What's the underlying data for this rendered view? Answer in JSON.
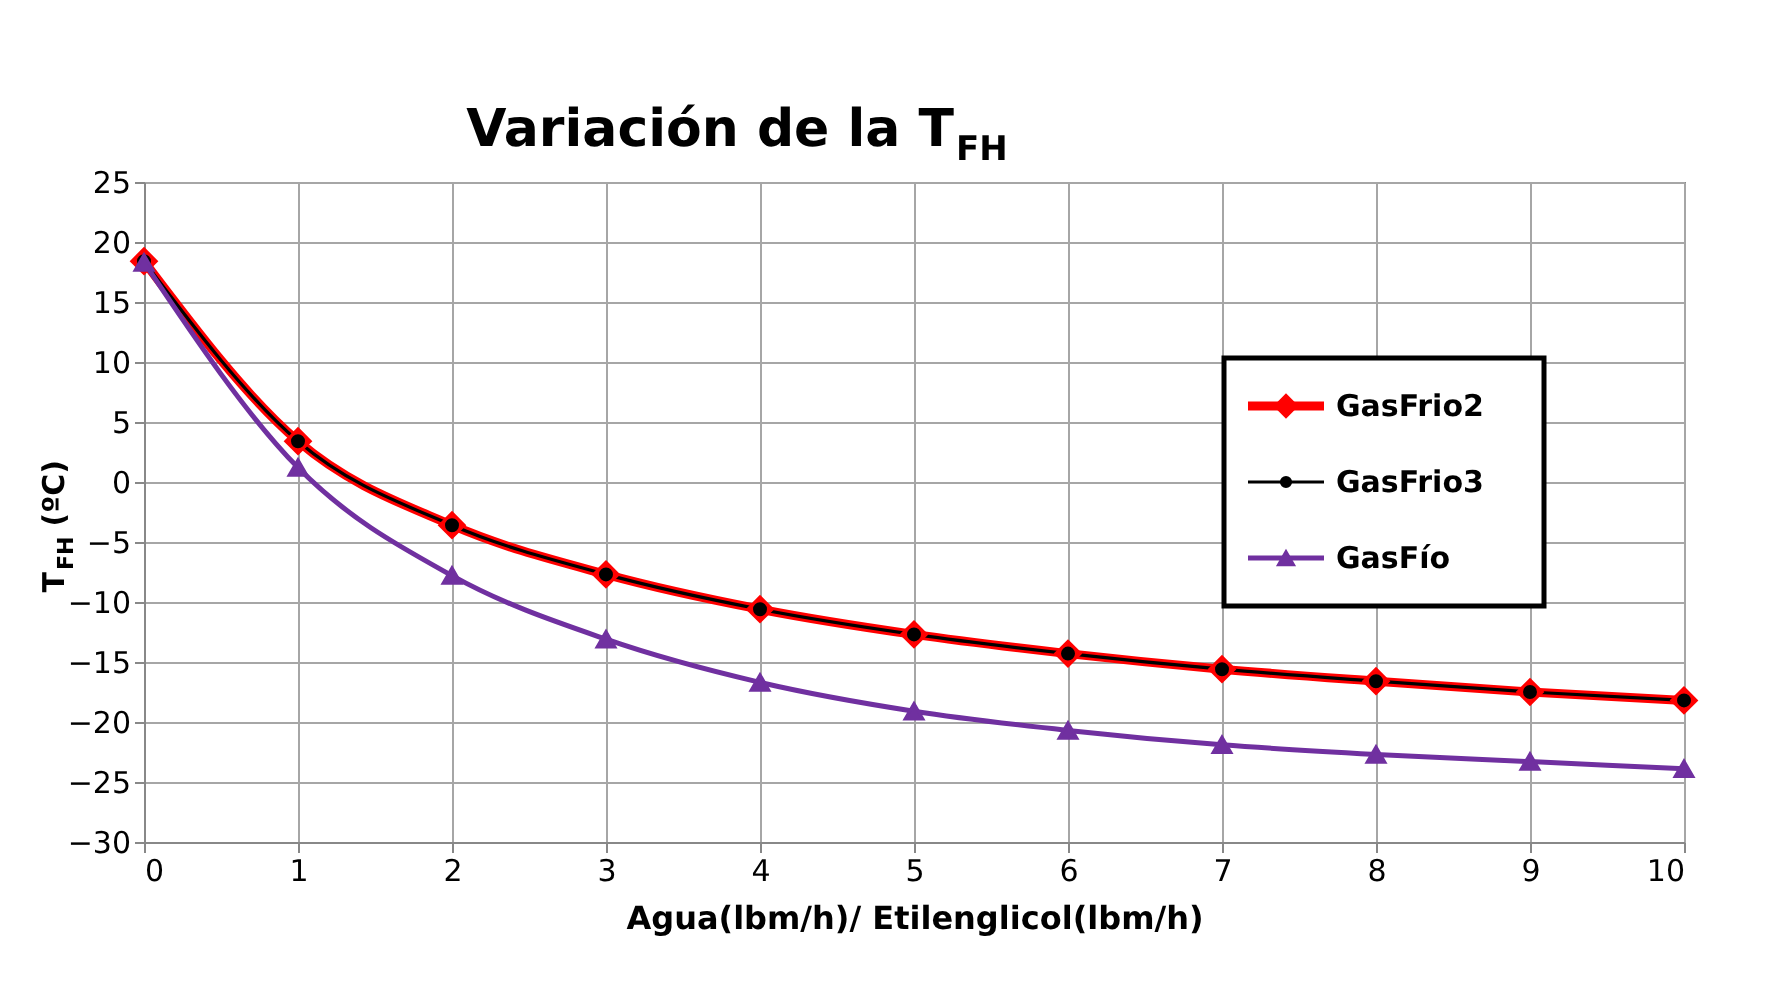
{
  "chart_data": {
    "type": "line",
    "title": "Variación de la T$_{FH}$",
    "xlabel": "Agua(lbm/h)/ Etilenglicol(lbm/h)",
    "ylabel": "T$_{FH}$ (ºC)",
    "x": [
      0,
      1,
      2,
      3,
      4,
      5,
      6,
      7,
      8,
      9,
      10
    ],
    "series": [
      {
        "name": "GasFrio2",
        "color": "#ff0000",
        "marker": "diamond",
        "values": [
          18.4,
          3.4,
          -3.6,
          -7.7,
          -10.6,
          -12.7,
          -14.3,
          -15.6,
          -16.6,
          -17.5,
          -18.2
        ]
      },
      {
        "name": "GasFrio3",
        "color": "#000000",
        "marker": "circle",
        "values": [
          18.4,
          3.4,
          -3.6,
          -7.7,
          -10.6,
          -12.7,
          -14.3,
          -15.6,
          -16.6,
          -17.5,
          -18.2
        ]
      },
      {
        "name": "GasFío",
        "color": "#7030a0",
        "marker": "triangle",
        "values": [
          18.3,
          1.2,
          -7.8,
          -13.1,
          -16.7,
          -19.1,
          -20.7,
          -21.9,
          -22.7,
          -23.3,
          -23.9
        ]
      }
    ],
    "xlim": [
      0,
      10
    ],
    "xticks": [
      0,
      1,
      2,
      3,
      4,
      5,
      6,
      7,
      8,
      9,
      10
    ],
    "ylim": [
      -30,
      25
    ],
    "yticks": [
      -30,
      -25,
      -20,
      -15,
      -10,
      -5,
      0,
      5,
      10,
      15,
      20,
      25
    ],
    "grid": true,
    "legend": "top right",
    "line_style": "solid"
  }
}
